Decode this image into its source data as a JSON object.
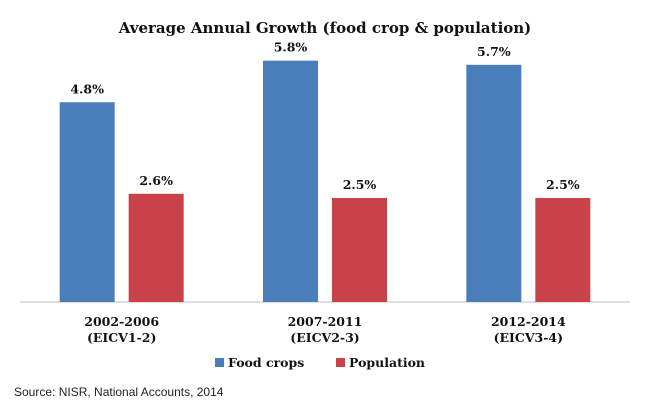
{
  "chart_data": {
    "type": "bar",
    "title": "Average Annual Growth (food crop & population)",
    "categories": [
      [
        "2002-2006",
        "(EICV1-2)"
      ],
      [
        "2007-2011",
        "(EICV2-3)"
      ],
      [
        "2012-2014",
        "(EICV3-4)"
      ]
    ],
    "series": [
      {
        "name": "Food crops",
        "values": [
          4.8,
          5.8,
          5.7
        ],
        "labels": [
          "4.8%",
          "5.8%",
          "5.7%"
        ],
        "color": "#4a7ebb"
      },
      {
        "name": "Population",
        "values": [
          2.6,
          2.5,
          2.5
        ],
        "labels": [
          "2.6%",
          "2.5%",
          "2.5%"
        ],
        "color": "#c9424a"
      }
    ],
    "ylim": [
      0,
      6.2
    ],
    "grid": false,
    "legend_position": "bottom"
  },
  "source": "Source: NISR, National Accounts, 2014"
}
